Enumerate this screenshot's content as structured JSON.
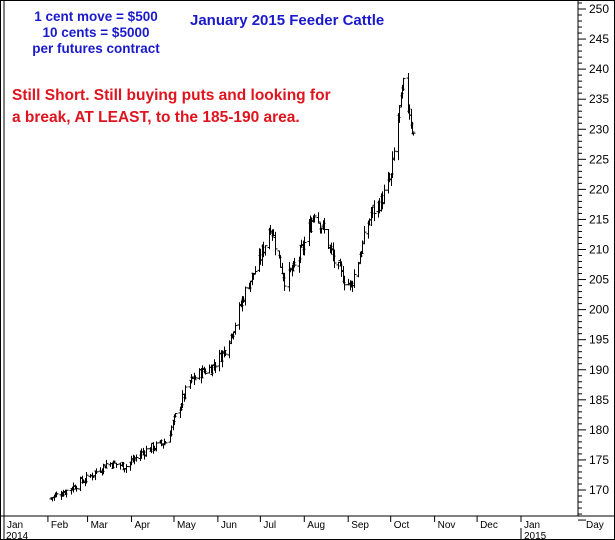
{
  "chart_data": {
    "type": "ohlc",
    "title": "January 2015 Feeder Cattle",
    "annotations": {
      "contract_lines": [
        "1 cent move = $500",
        "10 cents = $5000",
        "per futures contract"
      ],
      "comment_lines": [
        "Still Short. Still buying puts and looking for",
        "a break, AT LEAST, to the 185-190 area."
      ]
    },
    "x_axis": {
      "months": [
        "Jan",
        "Feb",
        "Mar",
        "Apr",
        "May",
        "Jun",
        "Jul",
        "Aug",
        "Sep",
        "Oct",
        "Nov",
        "Dec",
        "Jan",
        "Day"
      ],
      "years": [
        "2014",
        "2015"
      ]
    },
    "y_axis": {
      "ylim": [
        165,
        251
      ],
      "ticks": [
        170,
        175,
        180,
        185,
        190,
        195,
        200,
        205,
        210,
        215,
        220,
        225,
        230,
        235,
        240,
        245,
        250
      ],
      "position": "right"
    },
    "grid": false,
    "price_path": [
      [
        "2014-02-01",
        168.5
      ],
      [
        "2014-02-15",
        170.0
      ],
      [
        "2014-03-01",
        172.0
      ],
      [
        "2014-03-15",
        174.5
      ],
      [
        "2014-03-28",
        174.0
      ],
      [
        "2014-04-10",
        176.5
      ],
      [
        "2014-04-25",
        178.0
      ],
      [
        "2014-05-05",
        184.0
      ],
      [
        "2014-05-12",
        188.0
      ],
      [
        "2014-05-20",
        189.5
      ],
      [
        "2014-05-28",
        190.5
      ],
      [
        "2014-06-05",
        193.0
      ],
      [
        "2014-06-12",
        197.0
      ],
      [
        "2014-06-20",
        203.0
      ],
      [
        "2014-06-30",
        208.0
      ],
      [
        "2014-07-08",
        214.0
      ],
      [
        "2014-07-12",
        210.0
      ],
      [
        "2014-07-18",
        205.0
      ],
      [
        "2014-07-25",
        207.0
      ],
      [
        "2014-08-01",
        211.0
      ],
      [
        "2014-08-08",
        216.5
      ],
      [
        "2014-08-15",
        213.0
      ],
      [
        "2014-08-22",
        208.0
      ],
      [
        "2014-08-29",
        205.0
      ],
      [
        "2014-09-03",
        204.0
      ],
      [
        "2014-09-10",
        210.0
      ],
      [
        "2014-09-17",
        216.0
      ],
      [
        "2014-09-24",
        218.0
      ],
      [
        "2014-10-01",
        222.0
      ],
      [
        "2014-10-06",
        232.0
      ],
      [
        "2014-10-10",
        237.0
      ],
      [
        "2014-10-14",
        233.0
      ],
      [
        "2014-10-17",
        229.0
      ]
    ]
  }
}
